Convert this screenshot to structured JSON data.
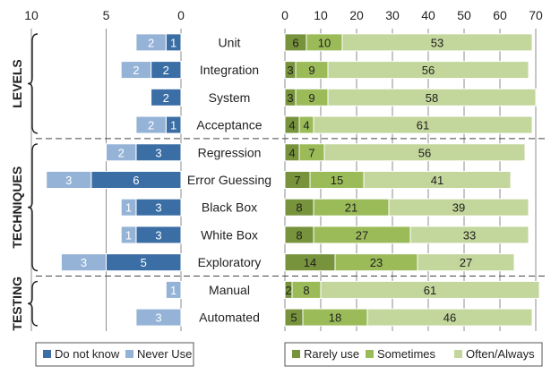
{
  "chart_data": {
    "type": "bar",
    "categories": [
      "Unit",
      "Integration",
      "System",
      "Acceptance",
      "Regression",
      "Error Guessing",
      "Black Box",
      "White Box",
      "Exploratory",
      "Manual",
      "Automated"
    ],
    "groups": [
      {
        "label": "LEVELS",
        "categories": [
          "Unit",
          "Integration",
          "System",
          "Acceptance"
        ]
      },
      {
        "label": "TECHNIQUES",
        "categories": [
          "Regression",
          "Error Guessing",
          "Black Box",
          "White Box",
          "Exploratory"
        ]
      },
      {
        "label": "TESTING",
        "categories": [
          "Manual",
          "Automated"
        ]
      }
    ],
    "left_panel": {
      "type": "bar",
      "orientation": "horizontal",
      "stacked": true,
      "x_direction": "reversed",
      "xlim": [
        0,
        10
      ],
      "xticks": [
        "10",
        "5",
        "0"
      ],
      "series": [
        {
          "name": "Do not know",
          "color": "#3a6ea5",
          "values": [
            1,
            2,
            2,
            1,
            3,
            6,
            3,
            3,
            5,
            0,
            0
          ]
        },
        {
          "name": "Never Use",
          "color": "#95b3d7",
          "values": [
            2,
            2,
            0,
            2,
            2,
            3,
            1,
            1,
            3,
            1,
            3
          ]
        }
      ]
    },
    "right_panel": {
      "type": "bar",
      "orientation": "horizontal",
      "stacked": true,
      "xlim": [
        0,
        70
      ],
      "xticks": [
        "0",
        "10",
        "20",
        "30",
        "40",
        "50",
        "60",
        "70"
      ],
      "series": [
        {
          "name": "Rarely use",
          "color": "#77933c",
          "values": [
            6,
            3,
            3,
            4,
            4,
            7,
            8,
            8,
            14,
            2,
            5
          ]
        },
        {
          "name": "Sometimes",
          "color": "#9bbb59",
          "values": [
            10,
            9,
            9,
            4,
            7,
            15,
            21,
            27,
            23,
            8,
            18
          ]
        },
        {
          "name": "Often/Always",
          "color": "#c3d69b",
          "values": [
            53,
            56,
            58,
            61,
            56,
            41,
            39,
            33,
            27,
            61,
            46
          ]
        }
      ]
    },
    "grid": true,
    "legend_position": "bottom"
  }
}
